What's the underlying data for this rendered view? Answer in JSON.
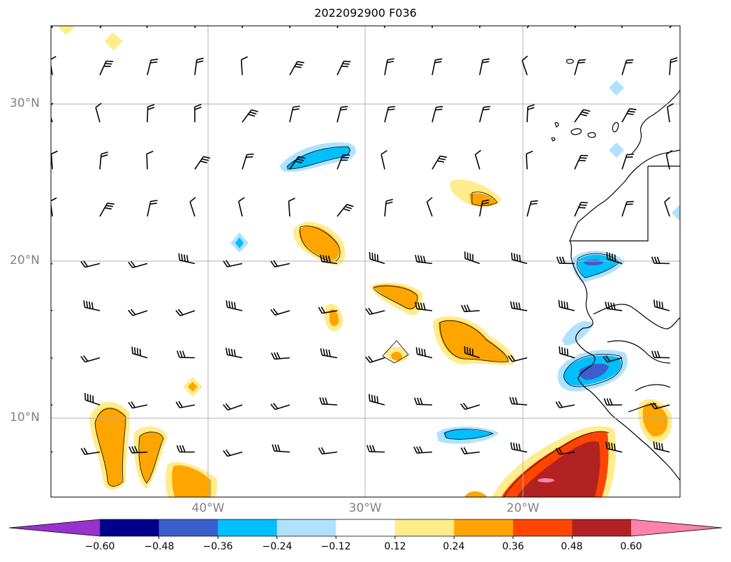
{
  "title": "2022092900 F036",
  "map": {
    "lat_labels": [
      "30°N",
      "20°N",
      "10°N"
    ],
    "lon_labels": [
      "40°W",
      "30°W",
      "20°W"
    ],
    "grid": true,
    "barbs": true,
    "coastline": true
  },
  "colorbar": {
    "ticks": [
      "−0.60",
      "−0.48",
      "−0.36",
      "−0.24",
      "−0.12",
      "0.12",
      "0.24",
      "0.36",
      "0.48",
      "0.60"
    ],
    "colors": [
      "#9932cc",
      "#00008b",
      "#3a5fcd",
      "#00bfff",
      "#b0e2ff",
      "#ffffff",
      "#ffec8b",
      "#ffa500",
      "#ff4500",
      "#b22222",
      "#ff82ab"
    ],
    "extend": "both"
  }
}
